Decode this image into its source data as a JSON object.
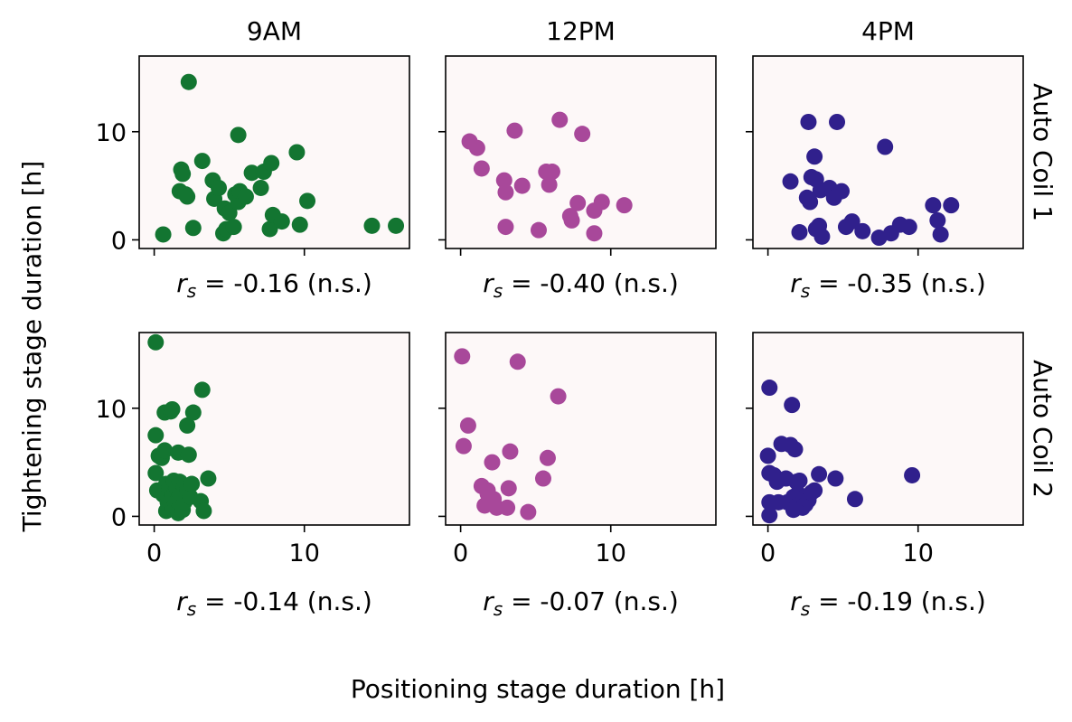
{
  "figure": {
    "xlabel": "Positioning stage duration [h]",
    "ylabel": "Tightening stage duration [h]"
  },
  "chart_data": {
    "type": "scatter",
    "columns": [
      "9AM",
      "12PM",
      "4PM"
    ],
    "rows": [
      "Auto Coil 1",
      "Auto Coil 2"
    ],
    "xlim": [
      -1,
      17
    ],
    "ylim": [
      -0.8,
      17
    ],
    "xticks": [
      0,
      10
    ],
    "yticks": [
      0,
      10
    ],
    "panel_background": "#fdf8f8",
    "colors": {
      "9AM": "#137531",
      "12PM": "#a8489a",
      "4PM": "#30208c"
    },
    "panels": [
      {
        "row": 0,
        "col": 0,
        "rs_label": "-0.16 (n.s.)",
        "points": [
          [
            2.3,
            14.6
          ],
          [
            0.6,
            0.5
          ],
          [
            1.7,
            4.5
          ],
          [
            1.8,
            6.5
          ],
          [
            1.9,
            6.1
          ],
          [
            2.1,
            4.2
          ],
          [
            2.2,
            4.0
          ],
          [
            2.6,
            1.1
          ],
          [
            3.2,
            7.3
          ],
          [
            3.9,
            5.5
          ],
          [
            4.0,
            3.8
          ],
          [
            4.3,
            4.8
          ],
          [
            4.7,
            2.9
          ],
          [
            4.6,
            0.6
          ],
          [
            4.8,
            1.0
          ],
          [
            5.0,
            2.5
          ],
          [
            5.3,
            1.2
          ],
          [
            5.4,
            4.2
          ],
          [
            5.6,
            3.5
          ],
          [
            5.6,
            9.7
          ],
          [
            5.7,
            4.5
          ],
          [
            6.1,
            4.0
          ],
          [
            6.5,
            6.2
          ],
          [
            7.1,
            4.8
          ],
          [
            7.3,
            6.3
          ],
          [
            7.8,
            7.1
          ],
          [
            7.7,
            1.0
          ],
          [
            7.9,
            2.3
          ],
          [
            8.5,
            1.7
          ],
          [
            9.5,
            8.1
          ],
          [
            9.7,
            1.4
          ],
          [
            10.2,
            3.6
          ],
          [
            14.5,
            1.3
          ],
          [
            16.1,
            1.3
          ]
        ]
      },
      {
        "row": 0,
        "col": 1,
        "rs_label": "-0.40 (n.s.)",
        "points": [
          [
            0.6,
            9.1
          ],
          [
            1.1,
            8.5
          ],
          [
            1.4,
            6.6
          ],
          [
            2.9,
            5.5
          ],
          [
            3.0,
            4.4
          ],
          [
            3.0,
            1.2
          ],
          [
            3.6,
            10.1
          ],
          [
            4.1,
            5.0
          ],
          [
            5.2,
            0.9
          ],
          [
            5.7,
            6.3
          ],
          [
            6.1,
            6.3
          ],
          [
            5.9,
            5.1
          ],
          [
            6.6,
            11.1
          ],
          [
            7.3,
            2.2
          ],
          [
            7.4,
            1.8
          ],
          [
            7.8,
            3.4
          ],
          [
            8.1,
            9.8
          ],
          [
            8.9,
            2.7
          ],
          [
            8.9,
            0.6
          ],
          [
            9.4,
            3.5
          ],
          [
            10.9,
            3.2
          ]
        ]
      },
      {
        "row": 0,
        "col": 2,
        "rs_label": "-0.35 (n.s.)",
        "points": [
          [
            1.5,
            5.4
          ],
          [
            2.1,
            0.7
          ],
          [
            2.6,
            3.9
          ],
          [
            2.7,
            10.9
          ],
          [
            2.8,
            3.5
          ],
          [
            2.9,
            5.8
          ],
          [
            3.1,
            7.7
          ],
          [
            3.2,
            5.6
          ],
          [
            3.2,
            1.0
          ],
          [
            3.4,
            1.3
          ],
          [
            3.5,
            4.6
          ],
          [
            3.6,
            0.3
          ],
          [
            4.1,
            4.8
          ],
          [
            4.4,
            3.9
          ],
          [
            4.6,
            10.9
          ],
          [
            4.9,
            4.5
          ],
          [
            5.2,
            1.2
          ],
          [
            5.6,
            1.7
          ],
          [
            6.3,
            0.8
          ],
          [
            7.4,
            0.2
          ],
          [
            7.8,
            8.6
          ],
          [
            8.2,
            0.6
          ],
          [
            8.8,
            1.4
          ],
          [
            9.4,
            1.2
          ],
          [
            11.0,
            3.2
          ],
          [
            11.3,
            1.8
          ],
          [
            11.5,
            0.5
          ],
          [
            12.2,
            3.2
          ]
        ]
      },
      {
        "row": 1,
        "col": 0,
        "rs_label": "-0.14 (n.s.)",
        "points": [
          [
            0.1,
            16.1
          ],
          [
            0.1,
            4.0
          ],
          [
            0.1,
            7.5
          ],
          [
            0.2,
            2.4
          ],
          [
            0.3,
            5.6
          ],
          [
            0.5,
            5.4
          ],
          [
            0.6,
            2.0
          ],
          [
            0.7,
            6.1
          ],
          [
            0.7,
            9.6
          ],
          [
            0.8,
            3.0
          ],
          [
            0.8,
            0.5
          ],
          [
            0.9,
            1.3
          ],
          [
            1.0,
            2.6
          ],
          [
            1.1,
            9.7
          ],
          [
            1.2,
            9.9
          ],
          [
            1.2,
            2.0
          ],
          [
            1.2,
            0.7
          ],
          [
            1.3,
            3.3
          ],
          [
            1.4,
            1.2
          ],
          [
            1.4,
            2.4
          ],
          [
            1.5,
            2.6
          ],
          [
            1.6,
            0.3
          ],
          [
            1.6,
            5.9
          ],
          [
            1.7,
            1.0
          ],
          [
            1.7,
            2.0
          ],
          [
            1.7,
            3.2
          ],
          [
            1.9,
            0.6
          ],
          [
            2.0,
            1.3
          ],
          [
            2.0,
            2.8
          ],
          [
            2.2,
            2.4
          ],
          [
            2.2,
            8.4
          ],
          [
            2.3,
            5.7
          ],
          [
            2.4,
            1.8
          ],
          [
            2.5,
            3.0
          ],
          [
            2.6,
            9.6
          ],
          [
            3.1,
            1.4
          ],
          [
            3.2,
            11.7
          ],
          [
            3.3,
            0.5
          ],
          [
            3.6,
            3.5
          ]
        ]
      },
      {
        "row": 1,
        "col": 1,
        "rs_label": "-0.07 (n.s.)",
        "points": [
          [
            0.1,
            14.8
          ],
          [
            0.2,
            6.5
          ],
          [
            0.5,
            8.4
          ],
          [
            1.4,
            2.8
          ],
          [
            1.6,
            1.0
          ],
          [
            1.8,
            2.1
          ],
          [
            1.8,
            2.4
          ],
          [
            2.1,
            5.0
          ],
          [
            2.2,
            1.6
          ],
          [
            2.4,
            0.8
          ],
          [
            3.1,
            0.8
          ],
          [
            3.2,
            2.6
          ],
          [
            3.3,
            6.0
          ],
          [
            3.8,
            14.3
          ],
          [
            4.5,
            0.4
          ],
          [
            5.5,
            3.5
          ],
          [
            5.8,
            5.4
          ],
          [
            6.5,
            11.1
          ]
        ]
      },
      {
        "row": 1,
        "col": 2,
        "rs_label": "-0.19 (n.s.)",
        "points": [
          [
            0.1,
            11.9
          ],
          [
            0.0,
            5.6
          ],
          [
            0.1,
            4.0
          ],
          [
            0.1,
            1.3
          ],
          [
            0.1,
            0.1
          ],
          [
            0.4,
            3.8
          ],
          [
            0.6,
            3.2
          ],
          [
            0.7,
            1.3
          ],
          [
            0.9,
            6.7
          ],
          [
            1.2,
            3.5
          ],
          [
            1.3,
            1.3
          ],
          [
            1.5,
            6.6
          ],
          [
            1.6,
            10.3
          ],
          [
            1.7,
            1.8
          ],
          [
            1.7,
            0.6
          ],
          [
            1.8,
            6.2
          ],
          [
            1.9,
            3.2
          ],
          [
            2.0,
            2.1
          ],
          [
            2.1,
            3.3
          ],
          [
            2.3,
            0.8
          ],
          [
            2.4,
            1.7
          ],
          [
            2.5,
            1.1
          ],
          [
            2.7,
            1.5
          ],
          [
            2.9,
            2.2
          ],
          [
            3.1,
            2.4
          ],
          [
            3.4,
            3.9
          ],
          [
            4.5,
            3.5
          ],
          [
            5.8,
            1.6
          ],
          [
            9.6,
            3.8
          ]
        ]
      }
    ]
  }
}
